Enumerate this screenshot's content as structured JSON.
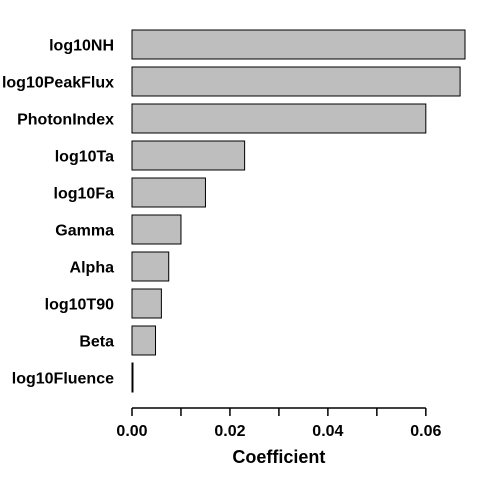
{
  "chart_data": {
    "type": "bar",
    "orientation": "horizontal",
    "categories": [
      "log10NH",
      "log10PeakFlux",
      "PhotonIndex",
      "log10Ta",
      "log10Fa",
      "Gamma",
      "Alpha",
      "log10T90",
      "Beta",
      "log10Fluence"
    ],
    "values": [
      0.068,
      0.067,
      0.06,
      0.023,
      0.015,
      0.01,
      0.0075,
      0.006,
      0.0048,
      0.0002
    ],
    "xlabel": "Coefficient",
    "ylabel": "",
    "xlim": [
      0,
      0.068
    ],
    "xticks": [
      0.0,
      0.02,
      0.04,
      0.06
    ],
    "xtick_labels": [
      "0.00",
      "0.02",
      "0.04",
      "0.06"
    ],
    "minor_xticks": [
      0.01,
      0.03,
      0.05
    ],
    "grid": false,
    "bar_color": "#bebebe",
    "bar_edge_color": "#000000"
  }
}
